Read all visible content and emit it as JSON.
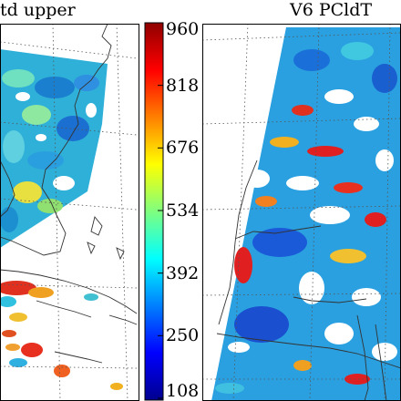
{
  "panels": [
    {
      "id": "left",
      "title": "td upper"
    },
    {
      "id": "right",
      "title": "V6 PCldT"
    }
  ],
  "colorbar": {
    "colormap": "jet",
    "colors": [
      "#00008f",
      "#0000ff",
      "#007fff",
      "#00ffff",
      "#7fff7f",
      "#ffff00",
      "#ff7f00",
      "#ff0000",
      "#8f0000"
    ],
    "range": [
      108,
      960
    ],
    "ticks": [
      "960",
      "818",
      "676",
      "534",
      "392",
      "250",
      "108"
    ]
  }
}
